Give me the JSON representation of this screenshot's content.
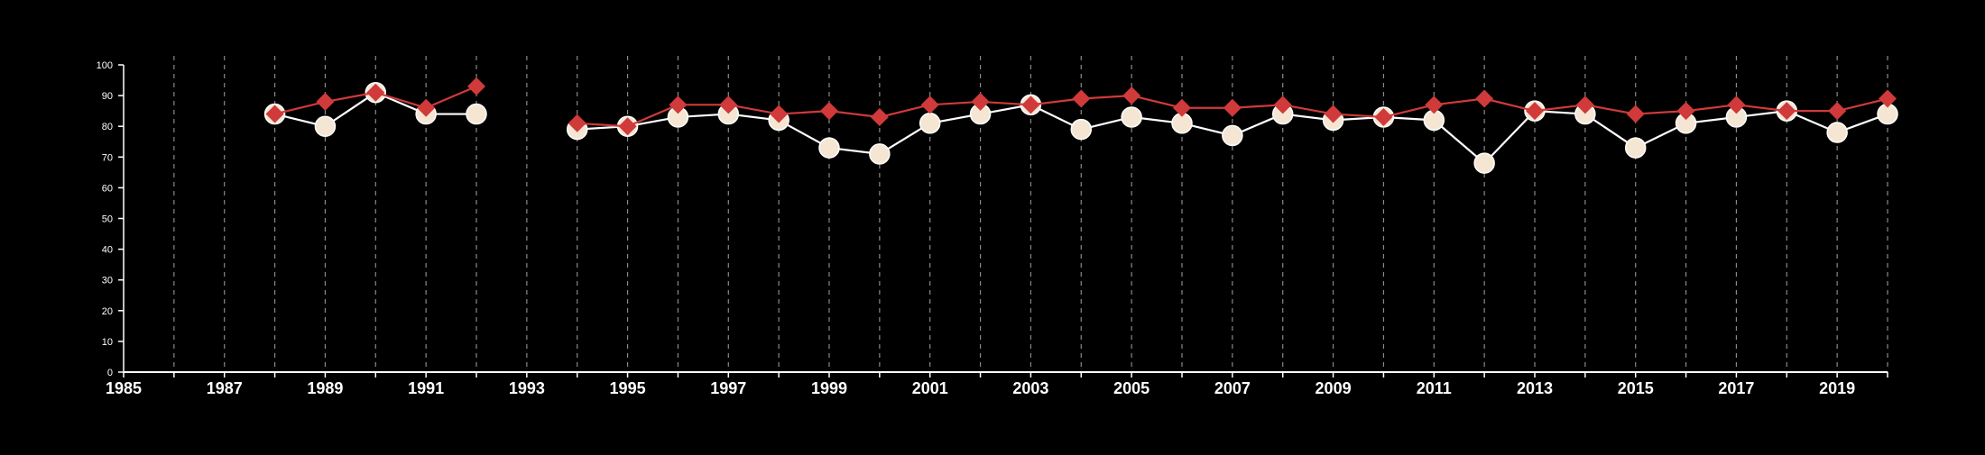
{
  "chart_data": {
    "type": "line",
    "title": "",
    "xlabel": "",
    "ylabel": "",
    "xlim": [
      1985,
      2020
    ],
    "ylim": [
      0,
      100
    ],
    "y_ticks": [
      0,
      10,
      20,
      30,
      40,
      50,
      60,
      70,
      80,
      90,
      100
    ],
    "x_ticks": [
      1985,
      1987,
      1989,
      1991,
      1993,
      1995,
      1997,
      1999,
      2001,
      2003,
      2005,
      2007,
      2009,
      2011,
      2013,
      2015,
      2017,
      2019
    ],
    "grid": "vertical dashed lines at each year",
    "legend": "none",
    "background_color": "#000000",
    "series": [
      {
        "marker": "circle",
        "color": "#f5e6d3",
        "line_color": "#ffffff",
        "points": [
          {
            "x": 1988,
            "y": 84
          },
          {
            "x": 1989,
            "y": 80
          },
          {
            "x": 1990,
            "y": 91
          },
          {
            "x": 1991,
            "y": 84
          },
          {
            "x": 1992,
            "y": 84
          },
          {
            "x": 1994,
            "y": 79
          },
          {
            "x": 1995,
            "y": 80
          },
          {
            "x": 1996,
            "y": 83
          },
          {
            "x": 1997,
            "y": 84
          },
          {
            "x": 1998,
            "y": 82
          },
          {
            "x": 1999,
            "y": 73
          },
          {
            "x": 2000,
            "y": 71
          },
          {
            "x": 2001,
            "y": 81
          },
          {
            "x": 2002,
            "y": 84
          },
          {
            "x": 2003,
            "y": 87
          },
          {
            "x": 2004,
            "y": 79
          },
          {
            "x": 2005,
            "y": 83
          },
          {
            "x": 2006,
            "y": 81
          },
          {
            "x": 2007,
            "y": 77
          },
          {
            "x": 2008,
            "y": 84
          },
          {
            "x": 2009,
            "y": 82
          },
          {
            "x": 2010,
            "y": 83
          },
          {
            "x": 2011,
            "y": 82
          },
          {
            "x": 2012,
            "y": 68
          },
          {
            "x": 2013,
            "y": 85
          },
          {
            "x": 2014,
            "y": 84
          },
          {
            "x": 2015,
            "y": 73
          },
          {
            "x": 2016,
            "y": 81
          },
          {
            "x": 2017,
            "y": 83
          },
          {
            "x": 2018,
            "y": 85
          },
          {
            "x": 2019,
            "y": 78
          },
          {
            "x": 2020,
            "y": 84
          }
        ]
      },
      {
        "marker": "diamond",
        "color": "#d03a3a",
        "line_color": "#d03a3a",
        "points": [
          {
            "x": 1988,
            "y": 84
          },
          {
            "x": 1989,
            "y": 88
          },
          {
            "x": 1990,
            "y": 91
          },
          {
            "x": 1991,
            "y": 86
          },
          {
            "x": 1992,
            "y": 93
          },
          {
            "x": 1994,
            "y": 81
          },
          {
            "x": 1995,
            "y": 80
          },
          {
            "x": 1996,
            "y": 87
          },
          {
            "x": 1997,
            "y": 87
          },
          {
            "x": 1998,
            "y": 84
          },
          {
            "x": 1999,
            "y": 85
          },
          {
            "x": 2000,
            "y": 83
          },
          {
            "x": 2001,
            "y": 87
          },
          {
            "x": 2002,
            "y": 88
          },
          {
            "x": 2003,
            "y": 87
          },
          {
            "x": 2004,
            "y": 89
          },
          {
            "x": 2005,
            "y": 90
          },
          {
            "x": 2006,
            "y": 86
          },
          {
            "x": 2007,
            "y": 86
          },
          {
            "x": 2008,
            "y": 87
          },
          {
            "x": 2009,
            "y": 84
          },
          {
            "x": 2010,
            "y": 83
          },
          {
            "x": 2011,
            "y": 87
          },
          {
            "x": 2012,
            "y": 89
          },
          {
            "x": 2013,
            "y": 85
          },
          {
            "x": 2014,
            "y": 87
          },
          {
            "x": 2015,
            "y": 84
          },
          {
            "x": 2016,
            "y": 85
          },
          {
            "x": 2017,
            "y": 87
          },
          {
            "x": 2018,
            "y": 85
          },
          {
            "x": 2019,
            "y": 85
          },
          {
            "x": 2020,
            "y": 89
          }
        ]
      }
    ]
  }
}
